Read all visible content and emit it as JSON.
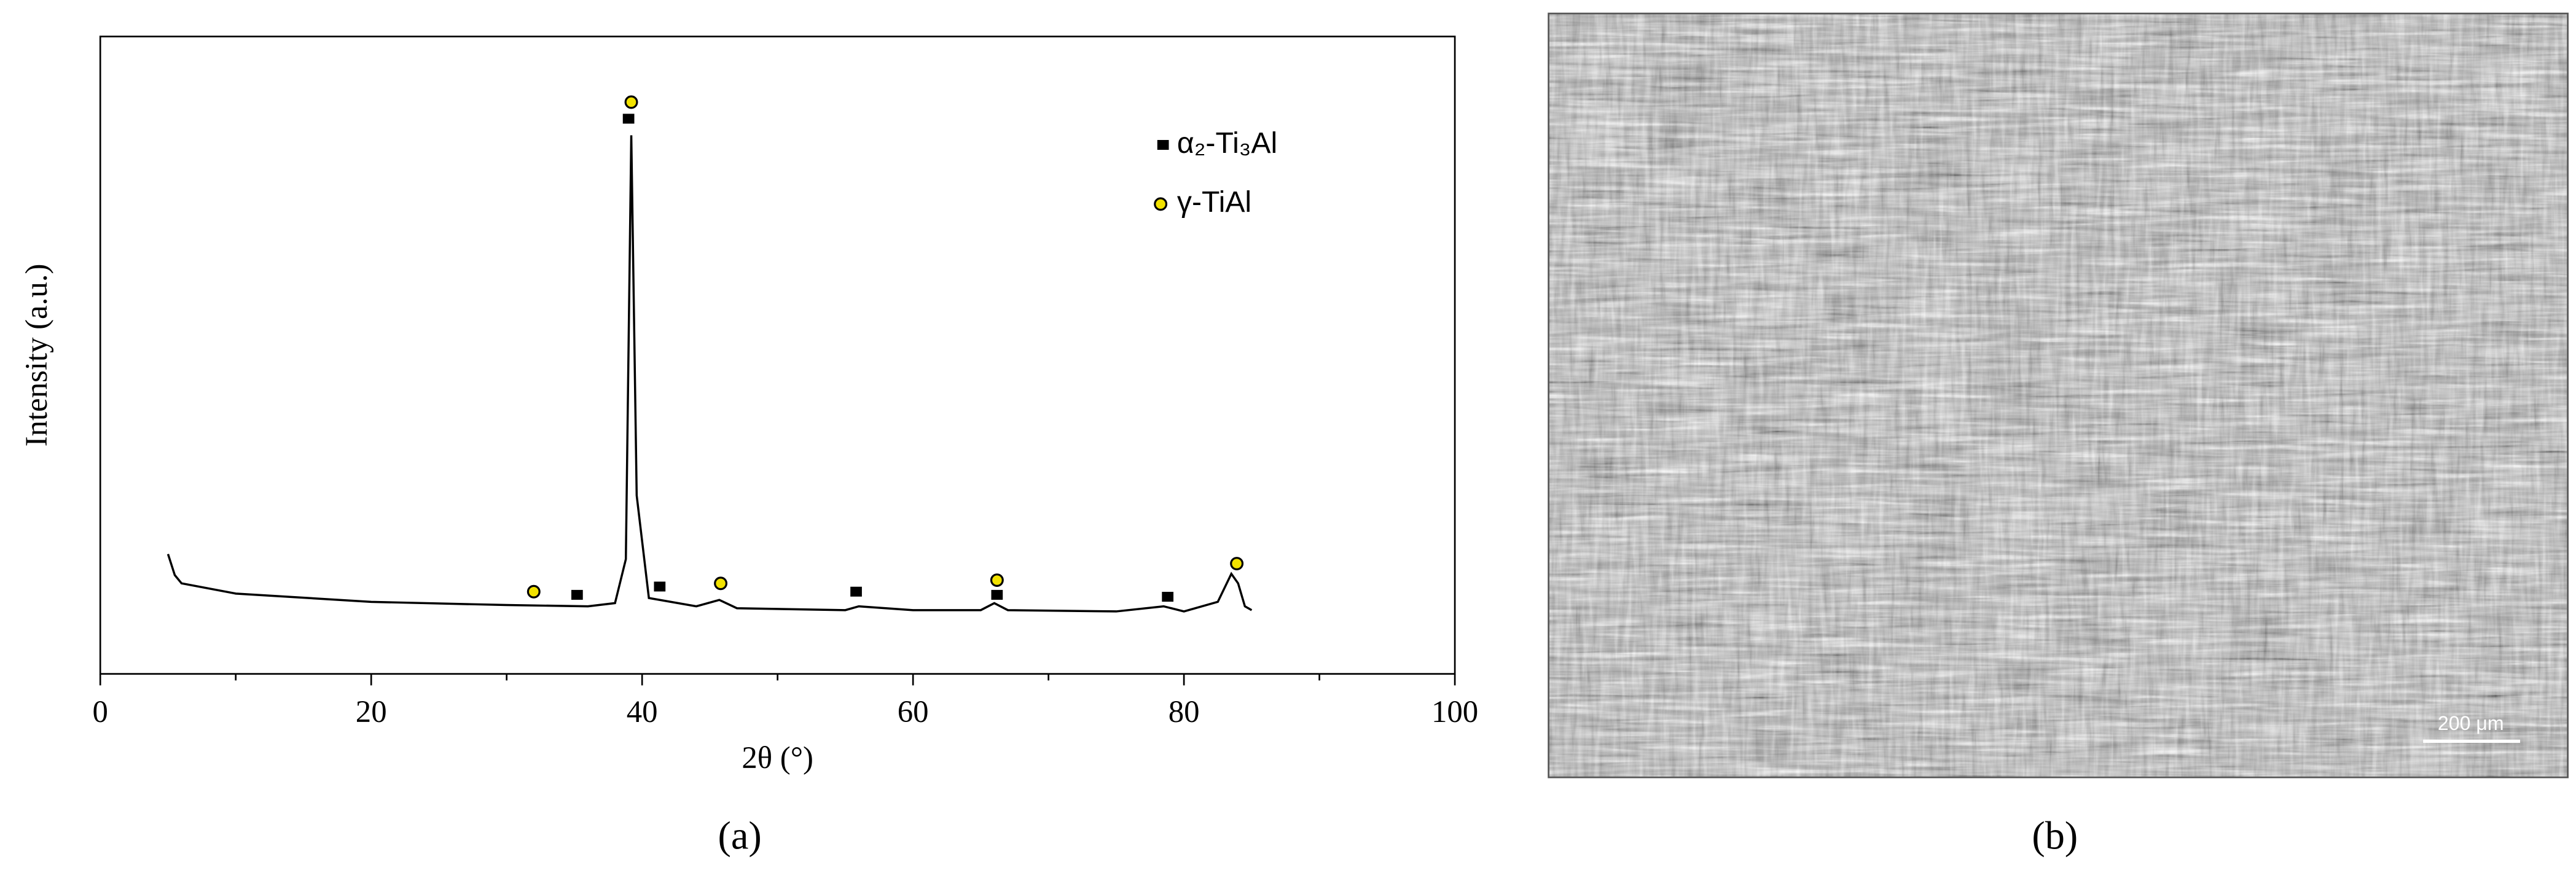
{
  "chart_data": {
    "type": "line",
    "panel_label": "(a)",
    "x_label": "2θ (°)",
    "y_label": "Intensity  (a.u.)",
    "xlim": [
      0,
      100
    ],
    "ylim": [
      0,
      100
    ],
    "xticks": [
      0,
      20,
      40,
      60,
      80,
      100
    ],
    "xminorticks": [
      10,
      30,
      50,
      70,
      90
    ],
    "series": [
      {
        "type": "line",
        "color": "#000000",
        "x": [
          5,
          5.5,
          6,
          10,
          20,
          30,
          36,
          38,
          38.8,
          39.2,
          39.6,
          40.5,
          44,
          45.7,
          47,
          55,
          56,
          60,
          65,
          66,
          67,
          75,
          78.5,
          80,
          82.5,
          83.5,
          84,
          84.5,
          85
        ],
        "values": [
          18.8,
          15.5,
          14.2,
          12.6,
          11.3,
          10.8,
          10.6,
          11.1,
          18,
          84.5,
          28,
          11.9,
          10.6,
          11.6,
          10.3,
          10,
          10.6,
          10,
          10,
          11.1,
          10,
          9.8,
          10.6,
          9.8,
          11.3,
          15.7,
          14.2,
          10.6,
          10
        ]
      },
      {
        "type": "scatter",
        "name": "α₂-Ti₃Al",
        "marker": "square",
        "color": "#000000",
        "x": [
          35.2,
          39.0,
          41.3,
          55.8,
          66.2,
          78.8
        ],
        "values": [
          12.4,
          87.1,
          13.7,
          12.9,
          12.4,
          12.1
        ]
      },
      {
        "type": "scatter",
        "name": "γ-TiAl",
        "marker": "circle",
        "color": "#f2e200",
        "x": [
          32,
          39.2,
          45.8,
          66.2,
          83.9
        ],
        "values": [
          12.9,
          89.7,
          14.2,
          14.7,
          17.3
        ]
      }
    ]
  },
  "image_panel": {
    "panel_label": "(b)",
    "scale_bar": "200 μm"
  }
}
